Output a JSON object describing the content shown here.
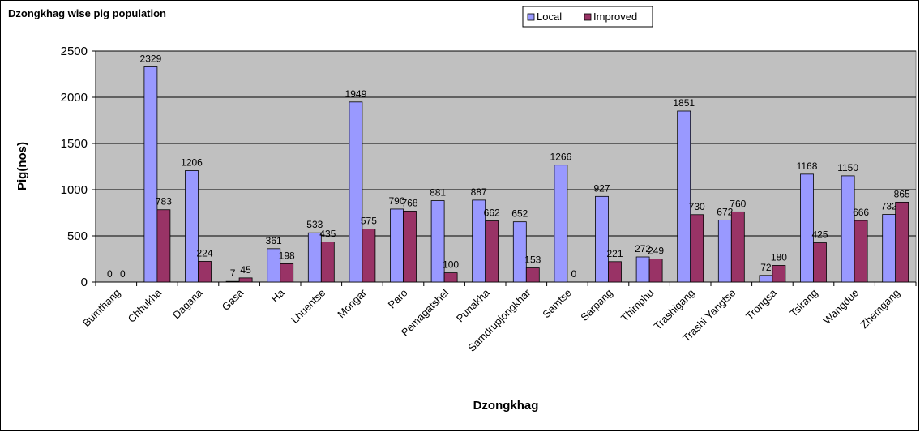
{
  "chart_data": {
    "type": "bar",
    "title": "Dzongkhag wise pig population",
    "xlabel": "Dzongkhag",
    "ylabel": "Pig(nos)",
    "ylim": [
      0,
      2500
    ],
    "yticks": [
      0,
      500,
      1000,
      1500,
      2000,
      2500
    ],
    "grid": true,
    "legend_position": "top",
    "categories": [
      "Bumthang",
      "Chhukha",
      "Dagana",
      "Gasa",
      "Ha",
      "Lhuentse",
      "Mongar",
      "Paro",
      "Pemagatshel",
      "Punakha",
      "Samdrupjongkhar",
      "Samtse",
      "Sarpang",
      "Thimphu",
      "Trashigang",
      "Trashi Yangtse",
      "Trongsa",
      "Tsirang",
      "Wangdue",
      "Zhemgang"
    ],
    "series": [
      {
        "name": "Local",
        "color": "#9999ff",
        "values": [
          0,
          2329,
          1206,
          7,
          361,
          533,
          1949,
          790,
          881,
          887,
          652,
          1266,
          927,
          272,
          1851,
          672,
          72,
          1168,
          1150,
          732
        ]
      },
      {
        "name": "Improved",
        "color": "#993366",
        "values": [
          0,
          783,
          224,
          45,
          198,
          435,
          575,
          768,
          100,
          662,
          153,
          0,
          221,
          249,
          730,
          760,
          180,
          425,
          666,
          865
        ]
      }
    ],
    "plot_background": "#c0c0c0"
  }
}
